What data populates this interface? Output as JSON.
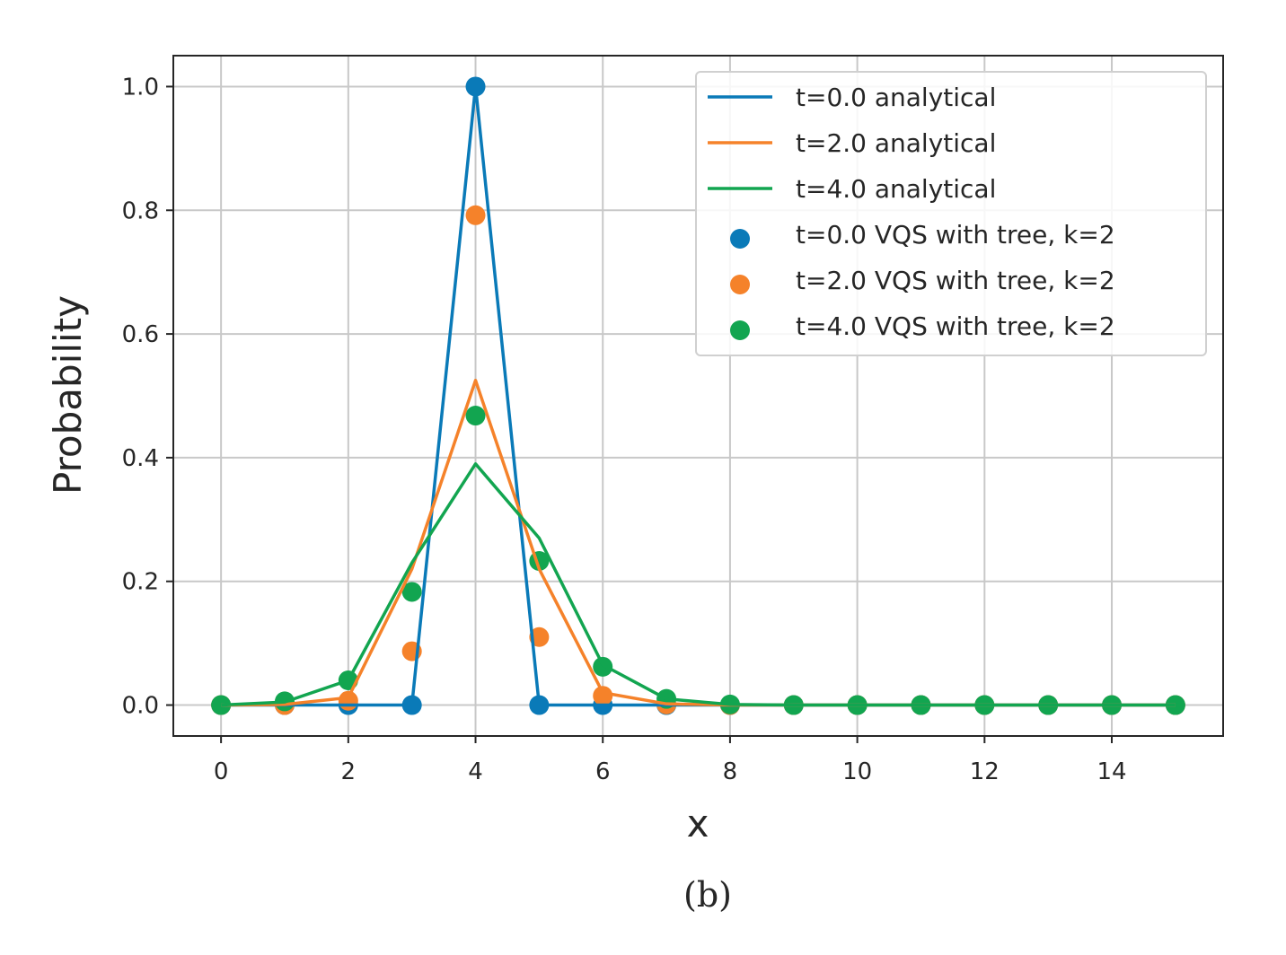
{
  "caption": "(b)",
  "chart_data": {
    "type": "line",
    "xlabel": "x",
    "ylabel": "Probability",
    "xlim": [
      -0.75,
      15.75
    ],
    "ylim": [
      -0.05,
      1.05
    ],
    "xticks": [
      0,
      2,
      4,
      6,
      8,
      10,
      12,
      14
    ],
    "xtick_labels": [
      "0",
      "2",
      "4",
      "6",
      "8",
      "10",
      "12",
      "14"
    ],
    "yticks": [
      0.0,
      0.2,
      0.4,
      0.6,
      0.8,
      1.0
    ],
    "ytick_labels": [
      "0.0",
      "0.2",
      "0.4",
      "0.6",
      "0.8",
      "1.0"
    ],
    "grid": true,
    "legend_position": "top-right",
    "x": [
      0,
      1,
      2,
      3,
      4,
      5,
      6,
      7,
      8,
      9,
      10,
      11,
      12,
      13,
      14,
      15
    ],
    "series": [
      {
        "name": "t=0.0 analytical",
        "kind": "line",
        "color": "#0a7ab8",
        "values": [
          0,
          0,
          0,
          0,
          1.0,
          0,
          0,
          0,
          0,
          0,
          0,
          0,
          0,
          0,
          0,
          0
        ]
      },
      {
        "name": "t=2.0 analytical",
        "kind": "line",
        "color": "#f5822a",
        "values": [
          0,
          0.001,
          0.012,
          0.22,
          0.525,
          0.22,
          0.02,
          0.002,
          0,
          0,
          0,
          0,
          0,
          0,
          0,
          0
        ]
      },
      {
        "name": "t=4.0 analytical",
        "kind": "line",
        "color": "#12a550",
        "values": [
          0,
          0.005,
          0.04,
          0.23,
          0.39,
          0.27,
          0.065,
          0.01,
          0.001,
          0,
          0,
          0,
          0,
          0,
          0,
          0
        ]
      },
      {
        "name": "t=0.0 VQS with tree, k=2",
        "kind": "scatter",
        "color": "#0a7ab8",
        "values": [
          0,
          0,
          0,
          0,
          1.0,
          0,
          0,
          0,
          0,
          0,
          0,
          0,
          0,
          0,
          0,
          0
        ]
      },
      {
        "name": "t=2.0 VQS with tree, k=2",
        "kind": "scatter",
        "color": "#f5822a",
        "values": [
          0,
          0,
          0.007,
          0.087,
          0.792,
          0.11,
          0.015,
          0.001,
          0,
          0,
          0,
          0,
          0,
          0,
          0,
          0
        ]
      },
      {
        "name": "t=4.0 VQS with tree, k=2",
        "kind": "scatter",
        "color": "#12a550",
        "values": [
          0,
          0.006,
          0.04,
          0.183,
          0.468,
          0.233,
          0.062,
          0.01,
          0.001,
          0,
          0,
          0,
          0,
          0,
          0,
          0
        ]
      }
    ]
  }
}
